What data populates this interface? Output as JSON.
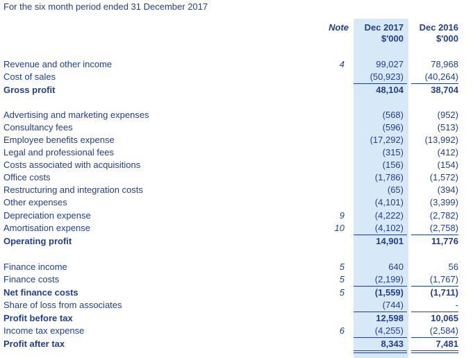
{
  "header": "For the six month period ended 31 December 2017",
  "columns": {
    "note": "Note",
    "dec2017_line1": "Dec 2017",
    "dec2017_line2": "$'000",
    "dec2016_line1": "Dec 2016",
    "dec2016_line2": "$'000"
  },
  "rows": [
    {
      "label": "Revenue and other income",
      "note": "4",
      "v17": "99,027",
      "v16": "78,968"
    },
    {
      "label": "Cost of sales",
      "note": "",
      "v17": "(50,923)",
      "v16": "(40,264)"
    },
    {
      "label": "Gross profit",
      "note": "",
      "v17": "48,104",
      "v16": "38,704"
    },
    {
      "label": "Advertising and marketing expenses",
      "note": "",
      "v17": "(568)",
      "v16": "(952)"
    },
    {
      "label": "Consultancy fees",
      "note": "",
      "v17": "(596)",
      "v16": "(513)"
    },
    {
      "label": "Employee benefits expense",
      "note": "",
      "v17": "(17,292)",
      "v16": "(13,992)"
    },
    {
      "label": "Legal and professional fees",
      "note": "",
      "v17": "(315)",
      "v16": "(412)"
    },
    {
      "label": "Costs associated with acquisitions",
      "note": "",
      "v17": "(156)",
      "v16": "(154)"
    },
    {
      "label": "Office costs",
      "note": "",
      "v17": "(1,786)",
      "v16": "(1,572)"
    },
    {
      "label": "Restructuring and integration costs",
      "note": "",
      "v17": "(65)",
      "v16": "(394)"
    },
    {
      "label": "Other expenses",
      "note": "",
      "v17": "(4,101)",
      "v16": "(3,399)"
    },
    {
      "label": "Depreciation expense",
      "note": "9",
      "v17": "(4,222)",
      "v16": "(2,782)"
    },
    {
      "label": "Amortisation expense",
      "note": "10",
      "v17": "(4,102)",
      "v16": "(2,758)"
    },
    {
      "label": "Operating profit",
      "note": "",
      "v17": "14,901",
      "v16": "11,776"
    },
    {
      "label": "Finance income",
      "note": "5",
      "v17": "640",
      "v16": "56"
    },
    {
      "label": "Finance costs",
      "note": "5",
      "v17": "(2,199)",
      "v16": "(1,767)"
    },
    {
      "label": "Net finance costs",
      "note": "5",
      "v17": "(1,559)",
      "v16": "(1,711)"
    },
    {
      "label": "Share of loss from associates",
      "note": "",
      "v17": "(744)",
      "v16": "-"
    },
    {
      "label": "Profit before tax",
      "note": "",
      "v17": "12,598",
      "v16": "10,065"
    },
    {
      "label": "Income tax expense",
      "note": "6",
      "v17": "(4,255)",
      "v16": "(2,584)"
    },
    {
      "label": "Profit after tax",
      "note": "",
      "v17": "8,343",
      "v16": "7,481"
    }
  ]
}
